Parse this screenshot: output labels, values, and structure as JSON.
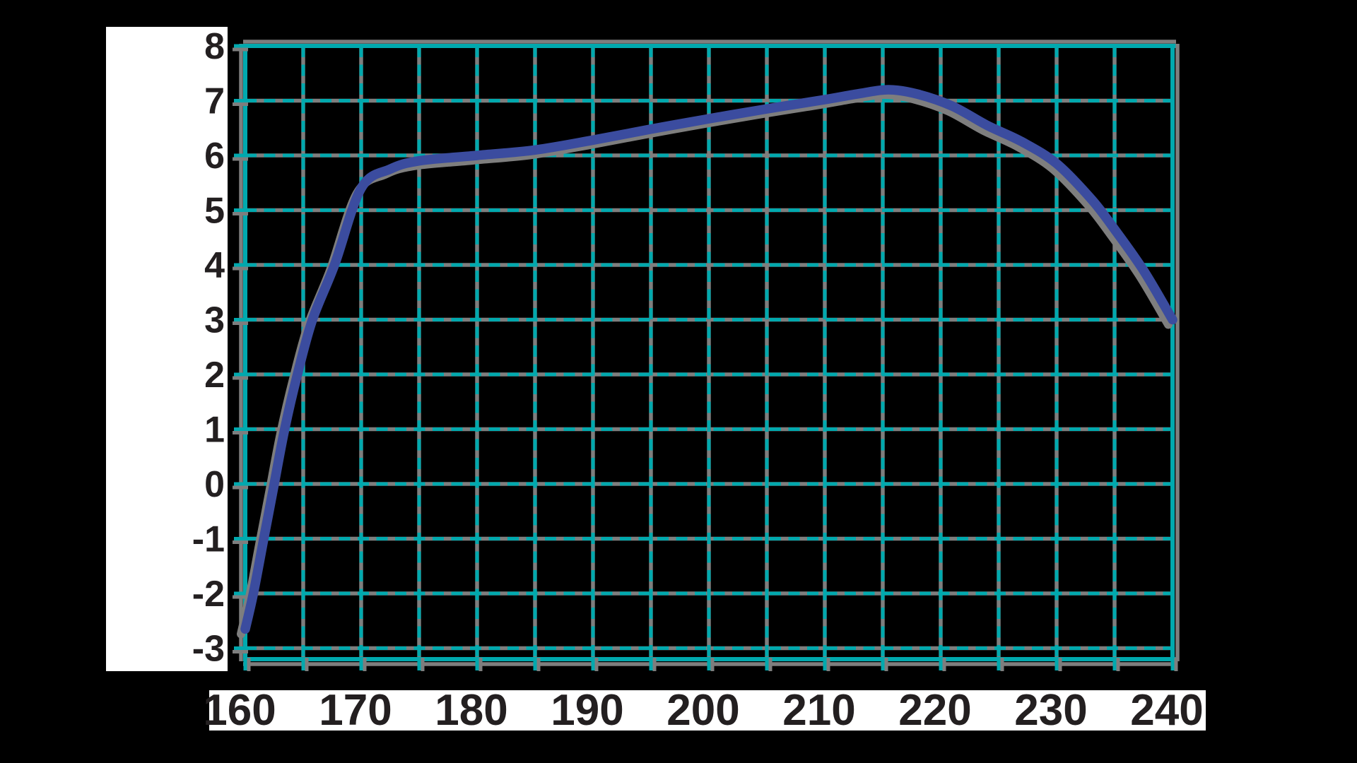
{
  "chart_data": {
    "type": "line",
    "title": "",
    "xlabel": "",
    "ylabel": "",
    "legend": "none",
    "grid": {
      "on": true,
      "x_line_step": 5,
      "y_line_step": 1,
      "style": "teal dashes over solid gray lines, solid teal border"
    },
    "xlim": [
      160,
      240
    ],
    "ylim": [
      -3.2,
      8
    ],
    "x_ticks": [
      160,
      170,
      180,
      190,
      200,
      210,
      220,
      230,
      240
    ],
    "x_tick_labels": [
      "160",
      "170",
      "180",
      "190",
      "200",
      "210",
      "220",
      "230",
      "240"
    ],
    "y_ticks": [
      8,
      7,
      6,
      5,
      4,
      3,
      2,
      1,
      0,
      -1,
      -2,
      -3
    ],
    "y_tick_labels": [
      "8",
      "7",
      "6",
      "5",
      "4",
      "3",
      "2",
      "1",
      "0",
      "-1",
      "-2",
      "-3"
    ],
    "series": [
      {
        "name": "curve",
        "points": [
          [
            160,
            -2.65
          ],
          [
            160.7,
            -2
          ],
          [
            161.6,
            -1
          ],
          [
            162.5,
            0
          ],
          [
            163.4,
            1
          ],
          [
            164.5,
            2
          ],
          [
            165.8,
            3
          ],
          [
            167.7,
            4
          ],
          [
            170,
            5.4
          ],
          [
            172.5,
            5.75
          ],
          [
            175,
            5.9
          ],
          [
            180,
            6.0
          ],
          [
            185,
            6.1
          ],
          [
            190,
            6.28
          ],
          [
            195,
            6.48
          ],
          [
            200,
            6.67
          ],
          [
            205,
            6.85
          ],
          [
            210,
            7.02
          ],
          [
            213,
            7.13
          ],
          [
            215.5,
            7.2
          ],
          [
            218,
            7.12
          ],
          [
            221,
            6.9
          ],
          [
            224,
            6.55
          ],
          [
            227,
            6.25
          ],
          [
            230,
            5.85
          ],
          [
            233,
            5.2
          ],
          [
            235,
            4.65
          ],
          [
            237.5,
            3.9
          ],
          [
            240,
            3.0
          ]
        ]
      }
    ]
  },
  "colors": {
    "background": "#000000",
    "grid_teal": "#00a9ae",
    "shadow_gray": "#7e7e7e",
    "curve_blue": "#3b4c9f",
    "label_ink": "#231f20",
    "label_patch": "#ffffff"
  }
}
